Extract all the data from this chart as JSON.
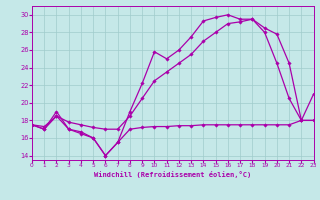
{
  "xlabel": "Windchill (Refroidissement éolien,°C)",
  "background_color": "#c5e8e8",
  "grid_color": "#a0cccc",
  "line_color": "#aa00aa",
  "marker": "D",
  "markersize": 1.8,
  "linewidth": 0.9,
  "xlim": [
    0,
    23
  ],
  "ylim": [
    13.5,
    31.0
  ],
  "xticks": [
    0,
    1,
    2,
    3,
    4,
    5,
    6,
    7,
    8,
    9,
    10,
    11,
    12,
    13,
    14,
    15,
    16,
    17,
    18,
    19,
    20,
    21,
    22,
    23
  ],
  "yticks": [
    14,
    16,
    18,
    20,
    22,
    24,
    26,
    28,
    30
  ],
  "series": [
    {
      "x": [
        0,
        1,
        2,
        3,
        4,
        5,
        6,
        7,
        8,
        9,
        10,
        11,
        12,
        13,
        14,
        15,
        16,
        17,
        18,
        19,
        20,
        21,
        22,
        23
      ],
      "y": [
        17.5,
        17.0,
        19.0,
        17.0,
        16.7,
        16.0,
        14.0,
        15.5,
        19.0,
        22.2,
        25.8,
        25.0,
        26.0,
        27.5,
        29.3,
        29.7,
        30.0,
        29.5,
        29.5,
        28.0,
        24.5,
        20.5,
        18.0,
        21.0
      ]
    },
    {
      "x": [
        0,
        1,
        2,
        3,
        4,
        5,
        6,
        7,
        8,
        9,
        10,
        11,
        12,
        13,
        14,
        15,
        16,
        17,
        18,
        19,
        20,
        21,
        22,
        23
      ],
      "y": [
        17.5,
        17.3,
        18.5,
        17.8,
        17.5,
        17.2,
        17.0,
        17.0,
        18.5,
        20.5,
        22.5,
        23.5,
        24.5,
        25.5,
        27.0,
        28.0,
        29.0,
        29.2,
        29.5,
        28.5,
        27.8,
        24.5,
        18.0,
        18.0
      ]
    },
    {
      "x": [
        0,
        1,
        2,
        3,
        4,
        5,
        6,
        7,
        8,
        9,
        10,
        11,
        12,
        13,
        14,
        15,
        16,
        17,
        18,
        19,
        20,
        21,
        22,
        23
      ],
      "y": [
        17.5,
        17.0,
        18.5,
        17.0,
        16.5,
        16.0,
        14.0,
        15.5,
        17.0,
        17.2,
        17.3,
        17.3,
        17.4,
        17.4,
        17.5,
        17.5,
        17.5,
        17.5,
        17.5,
        17.5,
        17.5,
        17.5,
        18.0,
        18.0
      ]
    }
  ]
}
